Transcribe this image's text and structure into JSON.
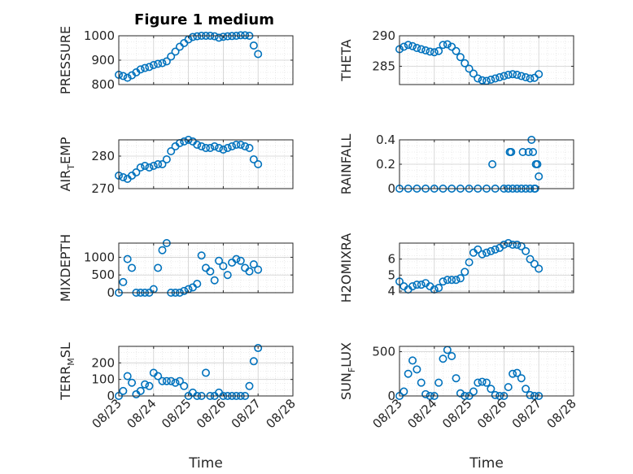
{
  "figure": {
    "title": "Figure 1 medium"
  },
  "colors": {
    "marker": "#0072BD",
    "grid": "#dcdcdc",
    "axis": "#262626"
  },
  "chart_data": [
    {
      "id": "pressure",
      "type": "scatter",
      "title": "Figure 1 medium",
      "ylabel_main": "PRESSURE",
      "ylabel_sub": "",
      "ylabel_tail": "",
      "xlabel": "",
      "ylim": [
        800,
        1000
      ],
      "yticks": [
        "800",
        "900",
        "1000"
      ],
      "ytick_values": [
        800,
        900,
        1000
      ],
      "xlim": [
        "08/23",
        "08/28"
      ],
      "xticks": [],
      "grid": true,
      "x": [
        "2023-08-23T00:00",
        "2023-08-23T03:00",
        "2023-08-23T06:00",
        "2023-08-23T09:00",
        "2023-08-23T12:00",
        "2023-08-23T15:00",
        "2023-08-23T18:00",
        "2023-08-23T21:00",
        "2023-08-24T00:00",
        "2023-08-24T03:00",
        "2023-08-24T06:00",
        "2023-08-24T09:00",
        "2023-08-24T12:00",
        "2023-08-24T15:00",
        "2023-08-24T18:00",
        "2023-08-24T21:00",
        "2023-08-25T00:00",
        "2023-08-25T03:00",
        "2023-08-25T06:00",
        "2023-08-25T09:00",
        "2023-08-25T12:00",
        "2023-08-25T15:00",
        "2023-08-25T18:00",
        "2023-08-25T21:00",
        "2023-08-26T00:00",
        "2023-08-26T03:00",
        "2023-08-26T06:00",
        "2023-08-26T09:00",
        "2023-08-26T12:00",
        "2023-08-26T15:00",
        "2023-08-26T18:00",
        "2023-08-26T21:00",
        "2023-08-27T00:00"
      ],
      "y": [
        840,
        835,
        828,
        838,
        850,
        862,
        868,
        872,
        880,
        885,
        888,
        895,
        915,
        935,
        955,
        970,
        985,
        995,
        998,
        1000,
        1000,
        1000,
        998,
        992,
        996,
        998,
        999,
        1000,
        1002,
        1002,
        1000,
        960,
        925
      ]
    },
    {
      "id": "theta",
      "type": "scatter",
      "ylabel_main": "THETA",
      "ylabel_sub": "",
      "ylabel_tail": "",
      "xlabel": "",
      "ylim": [
        282,
        290
      ],
      "yticks": [
        "285",
        "290"
      ],
      "ytick_values": [
        285,
        290
      ],
      "xlim": [
        "08/23",
        "08/28"
      ],
      "xticks": [],
      "grid": true,
      "x": [
        "2023-08-23T00:00",
        "2023-08-23T03:00",
        "2023-08-23T06:00",
        "2023-08-23T09:00",
        "2023-08-23T12:00",
        "2023-08-23T15:00",
        "2023-08-23T18:00",
        "2023-08-23T21:00",
        "2023-08-24T00:00",
        "2023-08-24T03:00",
        "2023-08-24T06:00",
        "2023-08-24T09:00",
        "2023-08-24T12:00",
        "2023-08-24T15:00",
        "2023-08-24T18:00",
        "2023-08-24T21:00",
        "2023-08-25T00:00",
        "2023-08-25T03:00",
        "2023-08-25T06:00",
        "2023-08-25T09:00",
        "2023-08-25T12:00",
        "2023-08-25T15:00",
        "2023-08-25T18:00",
        "2023-08-25T21:00",
        "2023-08-26T00:00",
        "2023-08-26T03:00",
        "2023-08-26T06:00",
        "2023-08-26T09:00",
        "2023-08-26T12:00",
        "2023-08-26T15:00",
        "2023-08-26T18:00",
        "2023-08-26T21:00",
        "2023-08-27T00:00"
      ],
      "y": [
        287.8,
        288.2,
        288.5,
        288.3,
        288.0,
        287.8,
        287.6,
        287.4,
        287.3,
        287.5,
        288.5,
        288.6,
        288.2,
        287.5,
        286.5,
        285.5,
        284.6,
        283.8,
        283.0,
        282.7,
        282.6,
        282.8,
        283.0,
        283.2,
        283.4,
        283.6,
        283.7,
        283.6,
        283.4,
        283.2,
        283.0,
        283.1,
        283.7
      ]
    },
    {
      "id": "air_temp",
      "type": "scatter",
      "ylabel_main": "AIR",
      "ylabel_sub": "T",
      "ylabel_tail": "EMP",
      "xlabel": "",
      "ylim": [
        270,
        285
      ],
      "yticks": [
        "270",
        "280"
      ],
      "ytick_values": [
        270,
        280
      ],
      "xlim": [
        "08/23",
        "08/28"
      ],
      "xticks": [],
      "grid": true,
      "x": [
        "2023-08-23T00:00",
        "2023-08-23T03:00",
        "2023-08-23T06:00",
        "2023-08-23T09:00",
        "2023-08-23T12:00",
        "2023-08-23T15:00",
        "2023-08-23T18:00",
        "2023-08-23T21:00",
        "2023-08-24T00:00",
        "2023-08-24T03:00",
        "2023-08-24T06:00",
        "2023-08-24T09:00",
        "2023-08-24T12:00",
        "2023-08-24T15:00",
        "2023-08-24T18:00",
        "2023-08-24T21:00",
        "2023-08-25T00:00",
        "2023-08-25T03:00",
        "2023-08-25T06:00",
        "2023-08-25T09:00",
        "2023-08-25T12:00",
        "2023-08-25T15:00",
        "2023-08-25T18:00",
        "2023-08-25T21:00",
        "2023-08-26T00:00",
        "2023-08-26T03:00",
        "2023-08-26T06:00",
        "2023-08-26T09:00",
        "2023-08-26T12:00",
        "2023-08-26T15:00",
        "2023-08-26T18:00",
        "2023-08-26T21:00",
        "2023-08-27T00:00"
      ],
      "y": [
        274,
        273.5,
        273,
        274,
        275,
        276.5,
        277,
        276.5,
        277,
        277.5,
        277.5,
        279,
        281.5,
        283,
        284,
        284.5,
        285,
        284.5,
        283.5,
        283,
        282.5,
        282.5,
        283,
        282.5,
        282,
        282.5,
        283,
        283.5,
        283.5,
        283,
        282.5,
        279,
        277.5
      ]
    },
    {
      "id": "rainfall",
      "type": "scatter",
      "ylabel_main": "RAINFALL",
      "ylabel_sub": "",
      "ylabel_tail": "",
      "xlabel": "",
      "ylim": [
        0,
        0.4
      ],
      "yticks": [
        "0",
        "0.2",
        "0.4"
      ],
      "ytick_values": [
        0,
        0.2,
        0.4
      ],
      "xlim": [
        "08/23",
        "08/28"
      ],
      "xticks": [],
      "grid": true,
      "x": [
        "2023-08-23T00:00",
        "2023-08-23T06:00",
        "2023-08-23T12:00",
        "2023-08-23T18:00",
        "2023-08-24T00:00",
        "2023-08-24T06:00",
        "2023-08-24T12:00",
        "2023-08-24T18:00",
        "2023-08-25T00:00",
        "2023-08-25T06:00",
        "2023-08-25T12:00",
        "2023-08-25T18:00",
        "2023-08-26T00:00",
        "2023-08-26T03:00",
        "2023-08-26T06:00",
        "2023-08-26T09:00",
        "2023-08-26T12:00",
        "2023-08-26T15:00",
        "2023-08-26T18:00",
        "2023-08-26T21:00",
        "2023-08-27T00:00",
        "2023-08-25T16:00",
        "2023-08-26T04:00",
        "2023-08-26T05:00",
        "2023-08-26T13:00",
        "2023-08-26T17:00",
        "2023-08-26T19:00",
        "2023-08-26T20:00",
        "2023-08-26T22:00",
        "2023-08-26T23:00",
        "2023-08-26T21:30"
      ],
      "y": [
        0,
        0,
        0,
        0,
        0,
        0,
        0,
        0,
        0,
        0,
        0,
        0,
        0,
        0,
        0,
        0,
        0,
        0,
        0,
        0,
        0.1,
        0.2,
        0.3,
        0.3,
        0.3,
        0.3,
        0.4,
        0.3,
        0.2,
        0.2,
        0
      ]
    },
    {
      "id": "mixdepth",
      "type": "scatter",
      "ylabel_main": "MIXDEPTH",
      "ylabel_sub": "",
      "ylabel_tail": "",
      "xlabel": "",
      "ylim": [
        0,
        1400
      ],
      "yticks": [
        "0",
        "500",
        "1000"
      ],
      "ytick_values": [
        0,
        500,
        1000
      ],
      "xlim": [
        "08/23",
        "08/28"
      ],
      "xticks": [],
      "grid": true,
      "x": [
        "2023-08-23T00:00",
        "2023-08-23T03:00",
        "2023-08-23T06:00",
        "2023-08-23T09:00",
        "2023-08-23T12:00",
        "2023-08-23T15:00",
        "2023-08-23T18:00",
        "2023-08-23T21:00",
        "2023-08-24T00:00",
        "2023-08-24T03:00",
        "2023-08-24T06:00",
        "2023-08-24T09:00",
        "2023-08-24T12:00",
        "2023-08-24T15:00",
        "2023-08-24T18:00",
        "2023-08-24T21:00",
        "2023-08-25T00:00",
        "2023-08-25T03:00",
        "2023-08-25T06:00",
        "2023-08-25T09:00",
        "2023-08-25T12:00",
        "2023-08-25T15:00",
        "2023-08-25T18:00",
        "2023-08-25T21:00",
        "2023-08-26T00:00",
        "2023-08-26T03:00",
        "2023-08-26T06:00",
        "2023-08-26T09:00",
        "2023-08-26T12:00",
        "2023-08-26T15:00",
        "2023-08-26T18:00",
        "2023-08-26T21:00",
        "2023-08-27T00:00"
      ],
      "y": [
        0,
        300,
        950,
        700,
        0,
        0,
        0,
        0,
        100,
        700,
        1200,
        1400,
        0,
        0,
        0,
        50,
        100,
        150,
        250,
        1050,
        700,
        600,
        350,
        900,
        750,
        500,
        850,
        950,
        900,
        700,
        600,
        800,
        650
      ]
    },
    {
      "id": "h2omixra",
      "type": "scatter",
      "ylabel_main": "H2OMIXRA",
      "ylabel_sub": "",
      "ylabel_tail": "",
      "xlabel": "",
      "ylim": [
        3.9,
        7
      ],
      "yticks": [
        "4",
        "5",
        "6"
      ],
      "ytick_values": [
        4,
        5,
        6
      ],
      "xlim": [
        "08/23",
        "08/28"
      ],
      "xticks": [],
      "grid": true,
      "x": [
        "2023-08-23T00:00",
        "2023-08-23T03:00",
        "2023-08-23T06:00",
        "2023-08-23T09:00",
        "2023-08-23T12:00",
        "2023-08-23T15:00",
        "2023-08-23T18:00",
        "2023-08-23T21:00",
        "2023-08-24T00:00",
        "2023-08-24T03:00",
        "2023-08-24T06:00",
        "2023-08-24T09:00",
        "2023-08-24T12:00",
        "2023-08-24T15:00",
        "2023-08-24T18:00",
        "2023-08-24T21:00",
        "2023-08-25T00:00",
        "2023-08-25T03:00",
        "2023-08-25T06:00",
        "2023-08-25T09:00",
        "2023-08-25T12:00",
        "2023-08-25T15:00",
        "2023-08-25T18:00",
        "2023-08-25T21:00",
        "2023-08-26T00:00",
        "2023-08-26T03:00",
        "2023-08-26T06:00",
        "2023-08-26T09:00",
        "2023-08-26T12:00",
        "2023-08-26T15:00",
        "2023-08-26T18:00",
        "2023-08-26T21:00",
        "2023-08-27T00:00"
      ],
      "y": [
        4.6,
        4.3,
        4.1,
        4.3,
        4.4,
        4.4,
        4.5,
        4.3,
        4.1,
        4.2,
        4.6,
        4.7,
        4.7,
        4.7,
        4.8,
        5.2,
        5.8,
        6.4,
        6.6,
        6.3,
        6.4,
        6.5,
        6.6,
        6.7,
        6.9,
        7.0,
        6.9,
        6.9,
        6.8,
        6.5,
        6.0,
        5.7,
        5.4
      ]
    },
    {
      "id": "terr_msl",
      "type": "scatter",
      "ylabel_main": "TERR",
      "ylabel_sub": "M",
      "ylabel_tail": "SL",
      "xlabel": "Time",
      "ylim": [
        0,
        300
      ],
      "yticks": [
        "0",
        "100",
        "200"
      ],
      "ytick_values": [
        0,
        100,
        200
      ],
      "xlim": [
        "08/23",
        "08/28"
      ],
      "xticks": [
        "08/23",
        "08/24",
        "08/25",
        "08/26",
        "08/27",
        "08/28"
      ],
      "grid": true,
      "x": [
        "2023-08-23T00:00",
        "2023-08-23T03:00",
        "2023-08-23T06:00",
        "2023-08-23T09:00",
        "2023-08-23T12:00",
        "2023-08-23T15:00",
        "2023-08-23T18:00",
        "2023-08-23T21:00",
        "2023-08-24T00:00",
        "2023-08-24T03:00",
        "2023-08-24T06:00",
        "2023-08-24T09:00",
        "2023-08-24T12:00",
        "2023-08-24T15:00",
        "2023-08-24T18:00",
        "2023-08-24T21:00",
        "2023-08-25T00:00",
        "2023-08-25T03:00",
        "2023-08-25T06:00",
        "2023-08-25T09:00",
        "2023-08-25T12:00",
        "2023-08-25T15:00",
        "2023-08-25T18:00",
        "2023-08-25T21:00",
        "2023-08-26T00:00",
        "2023-08-26T03:00",
        "2023-08-26T06:00",
        "2023-08-26T09:00",
        "2023-08-26T12:00",
        "2023-08-26T15:00",
        "2023-08-26T18:00",
        "2023-08-26T21:00",
        "2023-08-27T00:00"
      ],
      "y": [
        0,
        30,
        120,
        80,
        10,
        30,
        70,
        60,
        140,
        120,
        90,
        90,
        90,
        80,
        90,
        60,
        0,
        20,
        0,
        0,
        140,
        0,
        0,
        20,
        0,
        0,
        0,
        0,
        0,
        0,
        60,
        210,
        290
      ]
    },
    {
      "id": "sun_flux",
      "type": "scatter",
      "ylabel_main": "SUN",
      "ylabel_sub": "F",
      "ylabel_tail": "LUX",
      "xlabel": "Time",
      "ylim": [
        0,
        560
      ],
      "yticks": [
        "0",
        "500"
      ],
      "ytick_values": [
        0,
        500
      ],
      "xlim": [
        "08/23",
        "08/28"
      ],
      "xticks": [
        "08/23",
        "08/24",
        "08/25",
        "08/26",
        "08/27",
        "08/28"
      ],
      "grid": true,
      "x": [
        "2023-08-23T00:00",
        "2023-08-23T03:00",
        "2023-08-23T06:00",
        "2023-08-23T09:00",
        "2023-08-23T12:00",
        "2023-08-23T15:00",
        "2023-08-23T18:00",
        "2023-08-23T21:00",
        "2023-08-24T00:00",
        "2023-08-24T03:00",
        "2023-08-24T06:00",
        "2023-08-24T09:00",
        "2023-08-24T12:00",
        "2023-08-24T15:00",
        "2023-08-24T18:00",
        "2023-08-24T21:00",
        "2023-08-25T00:00",
        "2023-08-25T03:00",
        "2023-08-25T06:00",
        "2023-08-25T09:00",
        "2023-08-25T12:00",
        "2023-08-25T15:00",
        "2023-08-25T18:00",
        "2023-08-25T21:00",
        "2023-08-26T00:00",
        "2023-08-26T03:00",
        "2023-08-26T06:00",
        "2023-08-26T09:00",
        "2023-08-26T12:00",
        "2023-08-26T15:00",
        "2023-08-26T18:00",
        "2023-08-26T21:00",
        "2023-08-27T00:00"
      ],
      "y": [
        0,
        50,
        250,
        400,
        300,
        150,
        20,
        0,
        0,
        150,
        420,
        520,
        450,
        200,
        30,
        0,
        0,
        50,
        150,
        160,
        150,
        80,
        10,
        0,
        0,
        100,
        250,
        260,
        200,
        80,
        10,
        0,
        0
      ]
    }
  ]
}
